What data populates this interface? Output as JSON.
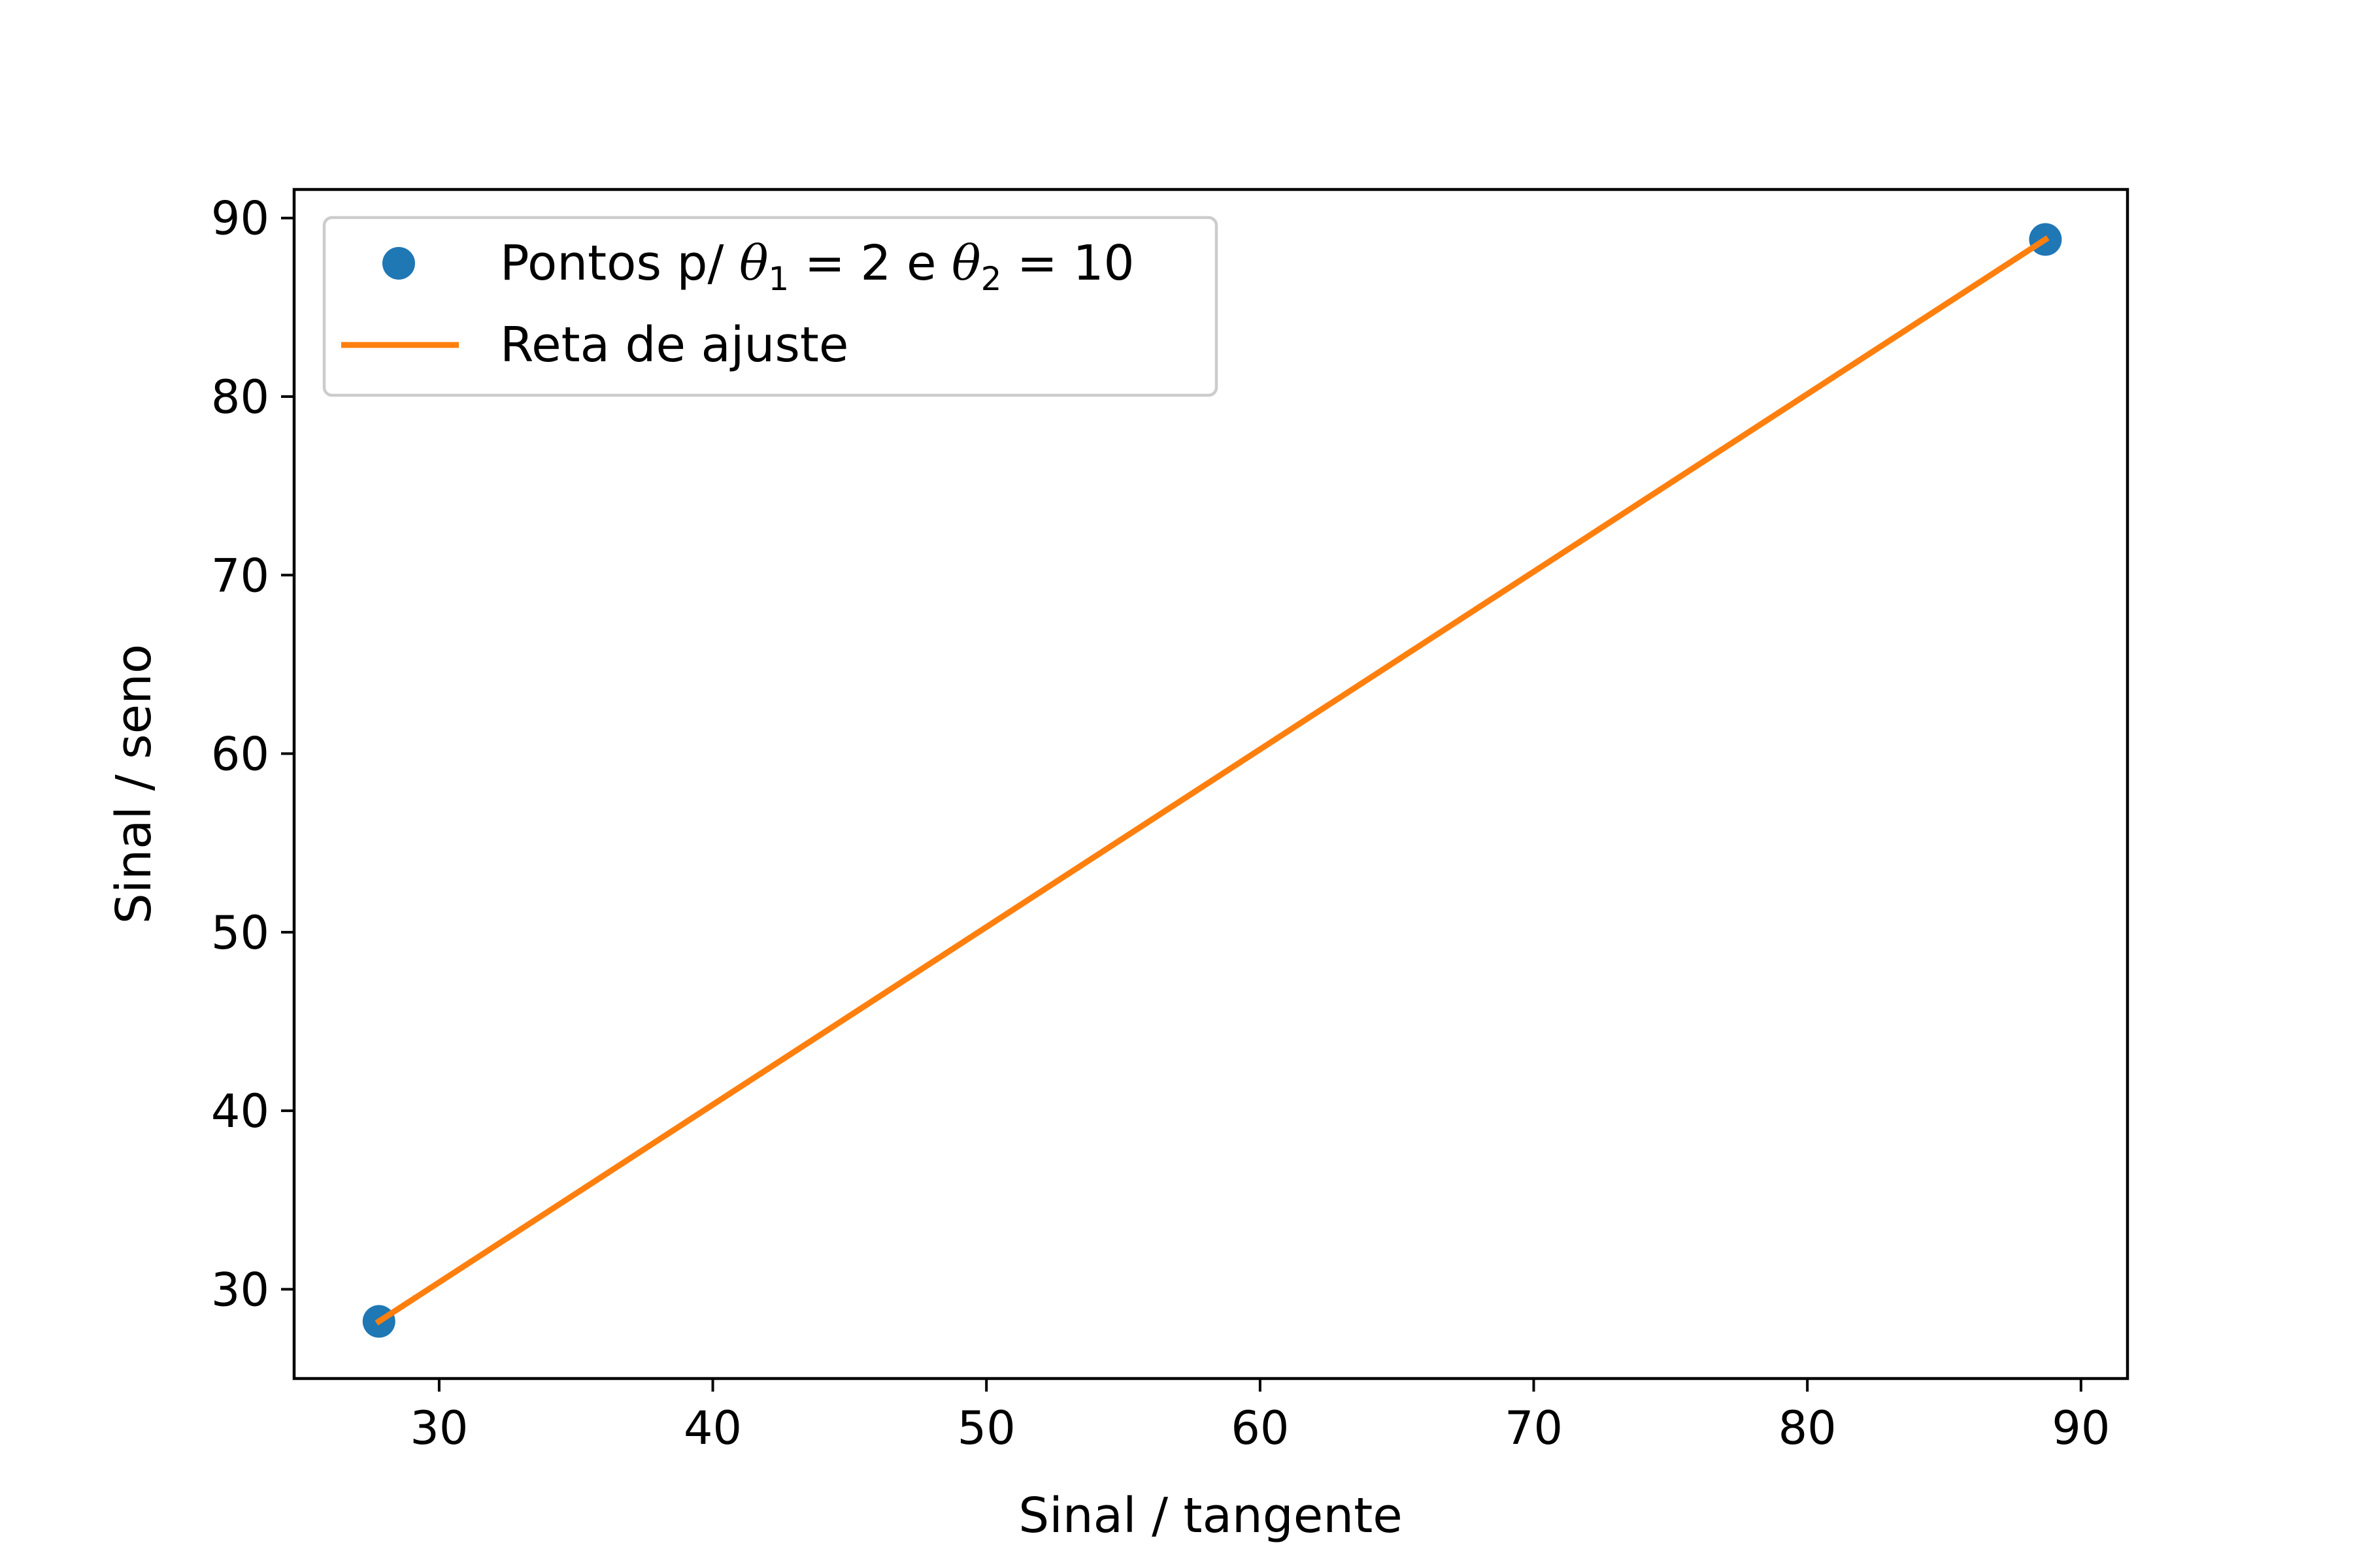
{
  "chart_data": {
    "type": "scatter",
    "xlabel": "Sinal / tangente",
    "ylabel": "Sinal / seno",
    "xlim": [
      24.7,
      91.7
    ],
    "ylim": [
      25.0,
      91.6
    ],
    "xticks": [
      30,
      40,
      50,
      60,
      70,
      80,
      90
    ],
    "yticks": [
      30,
      40,
      50,
      60,
      70,
      80,
      90
    ],
    "grid": false,
    "legend_position": "upper-left",
    "series": [
      {
        "kind": "points",
        "name": "Pontos p/ θ1 = 2 e θ2 = 10",
        "color": "#1f77b4",
        "x": [
          27.8,
          88.7
        ],
        "y": [
          28.2,
          88.8
        ]
      },
      {
        "kind": "line",
        "name": "Reta de ajuste",
        "color": "#ff7f0e",
        "x": [
          27.8,
          88.7
        ],
        "y": [
          28.2,
          88.8
        ]
      }
    ],
    "legend": {
      "points_label": {
        "prefix": "Pontos p/ ",
        "theta": "θ",
        "sub1": "1",
        "eq1": " = 2 e ",
        "sub2": "2",
        "eq2": " = 10"
      },
      "line_label": "Reta de ajuste"
    }
  }
}
